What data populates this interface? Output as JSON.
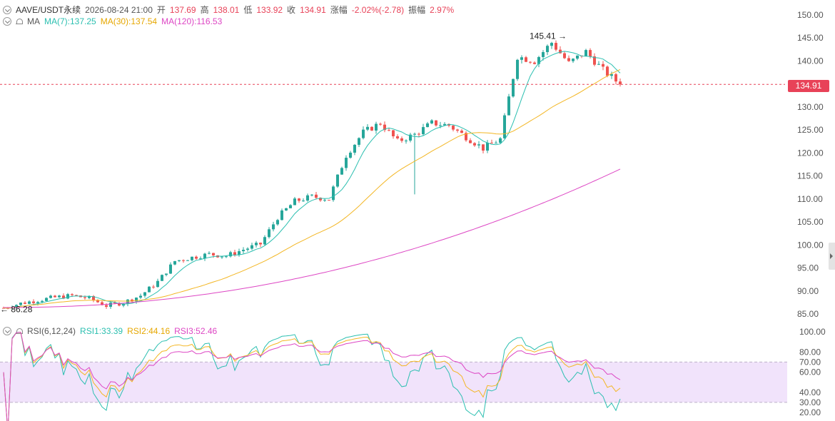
{
  "header": {
    "symbol": "AAVE/USDT永续",
    "datetime": "2026-08-24 21:00",
    "open_label": "开",
    "open": "137.69",
    "high_label": "高",
    "high": "138.01",
    "low_label": "低",
    "low": "133.92",
    "close_label": "收",
    "close": "134.91",
    "change_label": "涨幅",
    "change": "-2.02%(-2.78)",
    "amp_label": "振幅",
    "amp": "2.97%"
  },
  "ma_legend": {
    "label": "MA",
    "ma7": "MA(7):137.25",
    "ma30": "MA(30):137.54",
    "ma120": "MA(120):116.53"
  },
  "rsi_legend": {
    "label": "RSI(6,12,24)",
    "rsi1": "RSI1:33.39",
    "rsi2": "RSI2:44.16",
    "rsi3": "RSI3:52.46"
  },
  "last_price": "134.91",
  "colors": {
    "up": "#26a69a",
    "down": "#ef5350",
    "ma7": "#2bbfb0",
    "ma30": "#f3b623",
    "ma120": "#dd46c4",
    "rsi_band": "#f1e3fb"
  },
  "chart_data": {
    "type": "candlestick",
    "y_axis": {
      "ticks": [
        "150.00",
        "145.00",
        "140.00",
        "135.00",
        "130.00",
        "125.00",
        "120.00",
        "115.00",
        "110.00",
        "105.00",
        "100.00",
        "95.00",
        "90.00",
        "85.00"
      ],
      "range": [
        85,
        150
      ]
    },
    "max_label": "145.41 →",
    "min_label": "← 86.28",
    "ohlc_seed": {
      "start": 86.3,
      "path": [
        86.3,
        87.3,
        88.0,
        88.6,
        89.0,
        88.4,
        86.8,
        87.5,
        89.0,
        92.0,
        96.5,
        97.3,
        98.0,
        97.6,
        99.0,
        100.2,
        106.0,
        109.5,
        110.5,
        110.0,
        119.5,
        124.5,
        126.5,
        122.5,
        124.0,
        126.5,
        126.0,
        123.5,
        121.0,
        123.0,
        141.0,
        140.0,
        144.0,
        139.5,
        142.0,
        138.0,
        134.91
      ]
    },
    "rsi": {
      "y_axis_ticks": [
        "100.00",
        "80.00",
        "70.00",
        "60.00",
        "40.00",
        "30.00",
        "20.00"
      ],
      "range": [
        20,
        100
      ],
      "band": [
        30,
        70
      ],
      "last": {
        "rsi1": 33.39,
        "rsi2": 44.16,
        "rsi3": 52.46
      }
    }
  }
}
